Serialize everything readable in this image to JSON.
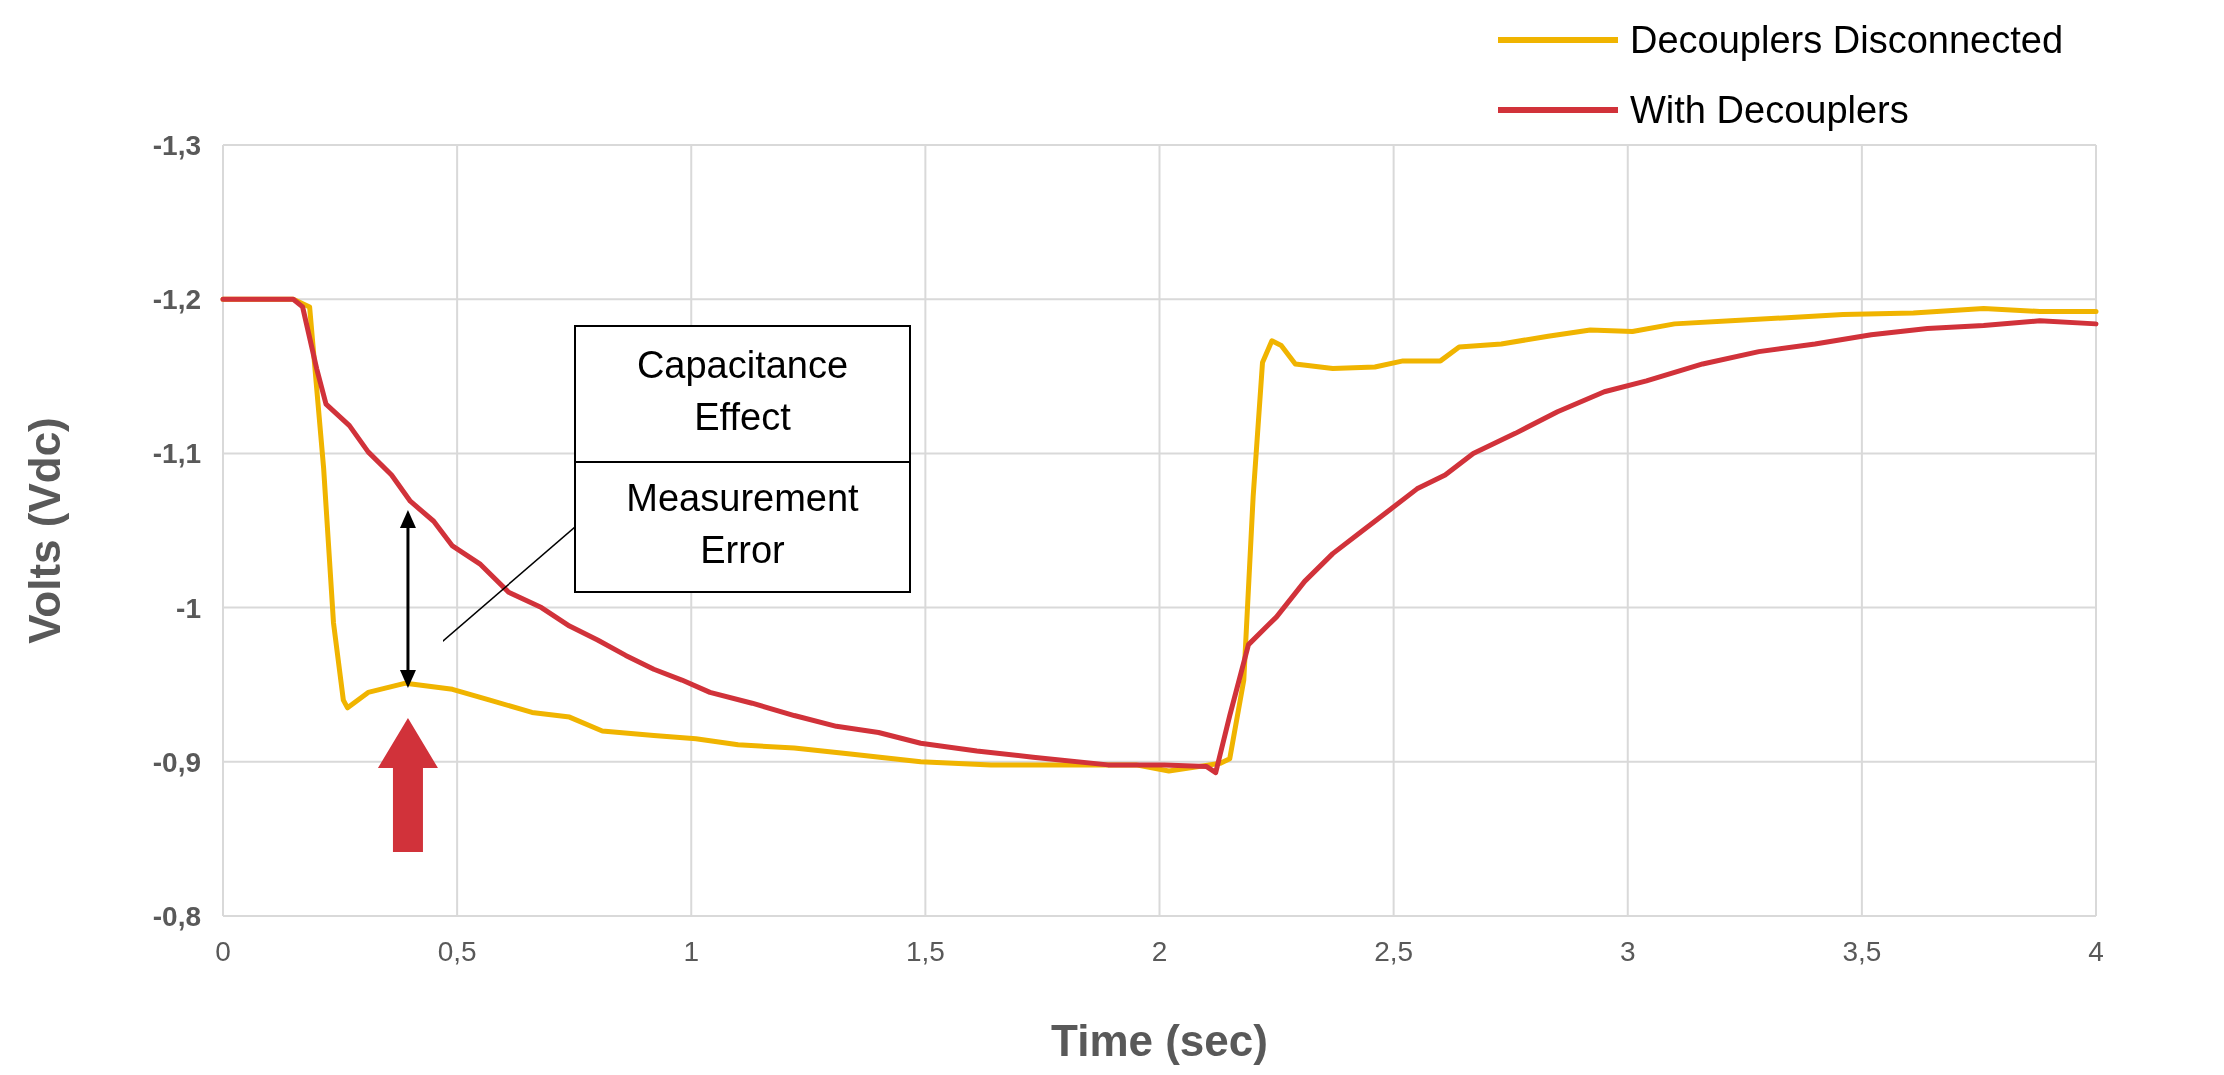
{
  "chart_data": {
    "type": "line",
    "xlabel": "Time (sec)",
    "ylabel": "Volts (Vdc)",
    "xlim": [
      0,
      4
    ],
    "ylim": [
      -0.8,
      -1.3
    ],
    "xticks": [
      0,
      {
        "value": 0.5,
        "label": "0,5"
      },
      1,
      {
        "value": 1.5,
        "label": "1,5"
      },
      2,
      {
        "value": 2.5,
        "label": "2,5"
      },
      3,
      {
        "value": 3.5,
        "label": "3,5"
      },
      4
    ],
    "yticks": [
      {
        "value": -0.8,
        "label": "-0,8"
      },
      {
        "value": -0.9,
        "label": "-0,9"
      },
      -1,
      {
        "value": -1.1,
        "label": "-1,1"
      },
      {
        "value": -1.2,
        "label": "-1,2"
      },
      {
        "value": -1.3,
        "label": "-1,3"
      }
    ],
    "grid": true,
    "legend": "top right",
    "line_style": "solid",
    "marker": "none",
    "annotations": [
      "Capacitance Effect",
      "Measurement Error"
    ],
    "series": [
      {
        "name": "Decouplers Disconnected",
        "color": "#f0b400",
        "x": [
          0,
          0.15,
          0.185,
          0.215,
          0.236,
          0.257,
          0.266,
          0.31,
          0.39,
          0.49,
          0.57,
          0.66,
          0.74,
          0.81,
          0.92,
          1.01,
          1.1,
          1.22,
          1.34,
          1.49,
          1.64,
          1.8,
          1.95,
          2.02,
          2.13,
          2.15,
          2.18,
          2.2,
          2.22,
          2.24,
          2.26,
          2.29,
          2.37,
          2.46,
          2.52,
          2.6,
          2.64,
          2.73,
          2.83,
          2.92,
          3.01,
          3.1,
          3.22,
          3.34,
          3.46,
          3.61,
          3.76,
          3.88,
          4
        ],
        "values": [
          -1.2,
          -1.2,
          -1.195,
          -1.09,
          -0.99,
          -0.94,
          -0.935,
          -0.945,
          -0.951,
          -0.947,
          -0.94,
          -0.932,
          -0.929,
          -0.92,
          -0.917,
          -0.915,
          -0.911,
          -0.909,
          -0.905,
          -0.9,
          -0.898,
          -0.898,
          -0.898,
          -0.894,
          -0.899,
          -0.902,
          -0.953,
          -1.072,
          -1.159,
          -1.173,
          -1.17,
          -1.158,
          -1.155,
          -1.156,
          -1.16,
          -1.16,
          -1.169,
          -1.171,
          -1.176,
          -1.18,
          -1.179,
          -1.184,
          -1.186,
          -1.188,
          -1.19,
          -1.191,
          -1.194,
          -1.192,
          -1.192
        ]
      },
      {
        "name": "With Decouplers",
        "color": "#d1323a",
        "x": [
          0,
          0.15,
          0.17,
          0.2,
          0.22,
          0.27,
          0.31,
          0.36,
          0.4,
          0.45,
          0.49,
          0.55,
          0.61,
          0.68,
          0.74,
          0.8,
          0.86,
          0.92,
          0.98,
          1.04,
          1.13,
          1.22,
          1.31,
          1.4,
          1.49,
          1.61,
          1.73,
          1.89,
          2.01,
          2.1,
          2.12,
          2.15,
          2.19,
          2.25,
          2.31,
          2.37,
          2.43,
          2.49,
          2.55,
          2.61,
          2.67,
          2.76,
          2.85,
          2.95,
          3.04,
          3.16,
          3.28,
          3.4,
          3.52,
          3.64,
          3.76,
          3.88,
          4
        ],
        "values": [
          -1.2,
          -1.2,
          -1.195,
          -1.155,
          -1.132,
          -1.118,
          -1.101,
          -1.086,
          -1.069,
          -1.056,
          -1.04,
          -1.028,
          -1.01,
          -1.0,
          -0.988,
          -0.979,
          -0.969,
          -0.96,
          -0.953,
          -0.945,
          -0.938,
          -0.93,
          -0.923,
          -0.919,
          -0.912,
          -0.907,
          -0.903,
          -0.898,
          -0.898,
          -0.897,
          -0.893,
          -0.93,
          -0.976,
          -0.994,
          -1.017,
          -1.035,
          -1.049,
          -1.063,
          -1.077,
          -1.086,
          -1.1,
          -1.113,
          -1.127,
          -1.14,
          -1.147,
          -1.158,
          -1.166,
          -1.171,
          -1.177,
          -1.181,
          -1.183,
          -1.186,
          -1.184
        ]
      }
    ]
  }
}
